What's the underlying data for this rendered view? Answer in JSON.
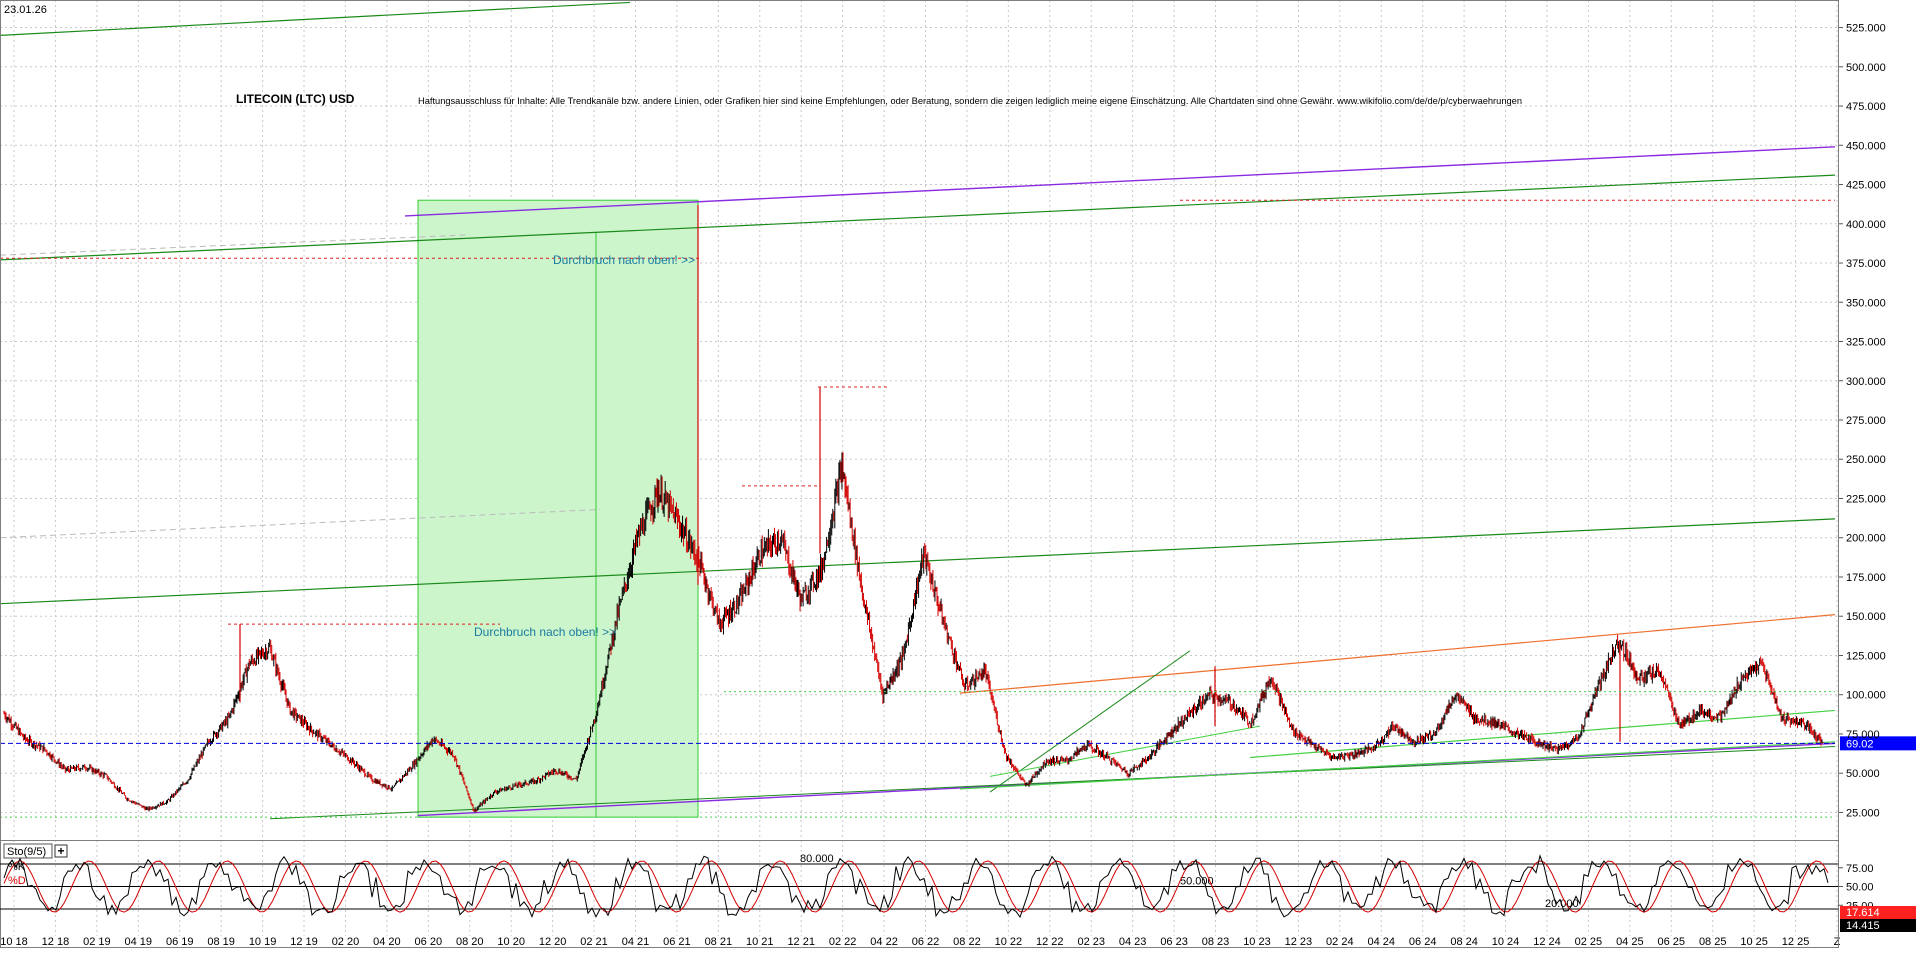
{
  "header": {
    "date": "23.01.26",
    "title": "LITECOIN (LTC) USD",
    "disclaimer": "Haftungsausschluss für Inhalte: Alle Trendkanäle bzw. andere Linien, oder Grafiken hier sind keine Empfehlungen, oder Beratung, sondern die zeigen lediglich meine eigene Einschätzung. Alle Chartdaten sind ohne Gewähr. www.wikifolio.com/de/de/p/cyberwaehrungen"
  },
  "annotations": {
    "breakout_upper": "Durchbruch nach oben! >>",
    "breakout_lower": "Durchbruch nach oben! >>"
  },
  "colors": {
    "price_up": "#000000",
    "price_down": "#d40000",
    "grid": "#c8c8c8",
    "trend_green": "#1a8a1a",
    "trend_lightgreen": "#44d144",
    "trend_purple": "#8a2be2",
    "trend_orange": "#f07030",
    "resistance_red": "#e02020",
    "current_line": "#0000dd",
    "current_badge": "#0000ff",
    "stoch_badge_red": "#ff2020",
    "highlight_fill": "#ccf5cc"
  },
  "chart_data": [
    {
      "type": "line",
      "title": "LITECOIN (LTC) USD",
      "ylim": [
        10,
        540
      ],
      "y_ticks": [
        "25.000",
        "50.000",
        "75.000",
        "100.000",
        "125.000",
        "150.000",
        "175.000",
        "200.000",
        "225.000",
        "250.000",
        "275.000",
        "300.000",
        "325.000",
        "350.000",
        "375.000",
        "400.000",
        "425.000",
        "450.000",
        "475.000",
        "500.000",
        "525.000"
      ],
      "y_tick_values": [
        25,
        50,
        75,
        100,
        125,
        150,
        175,
        200,
        225,
        250,
        275,
        300,
        325,
        350,
        375,
        400,
        425,
        450,
        475,
        500,
        525
      ],
      "x_ticks": [
        "10 18",
        "12 18",
        "02 19",
        "04 19",
        "06 19",
        "08 19",
        "10 19",
        "12 19",
        "02 20",
        "04 20",
        "06 20",
        "08 20",
        "10 20",
        "12 20",
        "02 21",
        "04 21",
        "06 21",
        "08 21",
        "10 21",
        "12 21",
        "02 22",
        "04 22",
        "06 22",
        "08 22",
        "10 22",
        "12 22",
        "02 23",
        "04 23",
        "06 23",
        "08 23",
        "10 23",
        "12 23",
        "02 24",
        "04 24",
        "06 24",
        "08 24",
        "10 24",
        "12 24",
        "02 25",
        "04 25",
        "06 25",
        "08 25",
        "10 25",
        "12 25",
        "Z"
      ],
      "x_tick_index": [
        0,
        2,
        4,
        6,
        8,
        10,
        12,
        14,
        16,
        18,
        20,
        22,
        24,
        26,
        28,
        30,
        32,
        34,
        36,
        38,
        40,
        42,
        44,
        46,
        48,
        50,
        52,
        54,
        56,
        58,
        60,
        62,
        64,
        66,
        68,
        70,
        72,
        74,
        76,
        78,
        80,
        82,
        84,
        86,
        88
      ],
      "series": [
        {
          "values": [
            88,
            72,
            65,
            52,
            54,
            48,
            34,
            27,
            32,
            46,
            70,
            85,
            120,
            130,
            90,
            78,
            68,
            58,
            46,
            40,
            55,
            72,
            62,
            26,
            38,
            42,
            45,
            52,
            46,
            90,
            150,
            200,
            230,
            210,
            185,
            145,
            160,
            190,
            200,
            160,
            180,
            245,
            165,
            100,
            125,
            190,
            145,
            105,
            115,
            62,
            42,
            58,
            58,
            68,
            60,
            50,
            60,
            75,
            88,
            100,
            95,
            82,
            112,
            78,
            68,
            60,
            62,
            66,
            80,
            70,
            75,
            100,
            85,
            82,
            75,
            70,
            65,
            72,
            105,
            135,
            110,
            115,
            80,
            90,
            85,
            110,
            120,
            85,
            82,
            69.02
          ]
        }
      ],
      "current_price_label": "69.02",
      "levels": [
        {
          "value": 415,
          "style": "dotted red"
        },
        {
          "value": 378,
          "style": "dotted red"
        },
        {
          "value": 296,
          "style": "dotted red"
        },
        {
          "value": 233,
          "style": "dotted red"
        },
        {
          "value": 145,
          "style": "dotted red"
        },
        {
          "value": 69.02,
          "style": "dashed blue"
        },
        {
          "value": 22,
          "style": "dotted green"
        },
        {
          "value": 102,
          "style": "dotted green"
        }
      ]
    },
    {
      "type": "line",
      "title": "",
      "indicator_label": "Sto(9/5)",
      "legend_k": "%K",
      "legend_d": "%D",
      "ylim": [
        0,
        100
      ],
      "y_ticks": [
        "75.00",
        "50.00",
        "25.00"
      ],
      "y_tick_values": [
        75,
        50,
        25
      ],
      "reference_lines": [
        {
          "value": 80,
          "label": "80.000"
        },
        {
          "value": 50,
          "label": "50.000"
        },
        {
          "value": 20,
          "label": "20.000"
        }
      ],
      "k_label": "17.614",
      "d_label": "14.415"
    }
  ]
}
